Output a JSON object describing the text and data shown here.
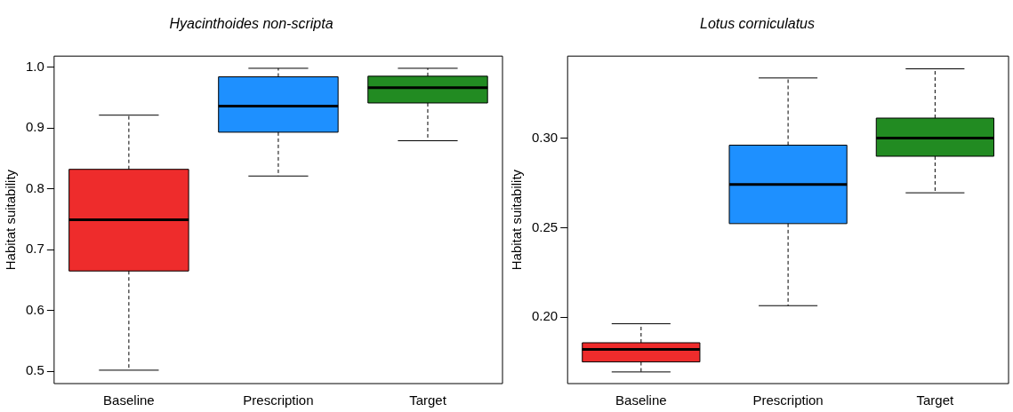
{
  "chart_data": [
    {
      "type": "box",
      "title": "Hyacinthoides non-scripta",
      "ylabel": "Habitat suitability",
      "categories": [
        "Baseline",
        "Prescription",
        "Target"
      ],
      "colors": [
        "#ee2c2c",
        "#1e90ff",
        "#228b22"
      ],
      "boxes": [
        {
          "low": 0.502,
          "q1": 0.665,
          "median": 0.749,
          "q3": 0.832,
          "high": 0.921
        },
        {
          "low": 0.821,
          "q1": 0.893,
          "median": 0.936,
          "q3": 0.984,
          "high": 0.998
        },
        {
          "low": 0.879,
          "q1": 0.941,
          "median": 0.966,
          "q3": 0.985,
          "high": 0.998
        }
      ],
      "ylim": [
        0.48,
        1.018
      ],
      "yticks": [
        0.5,
        0.6,
        0.7,
        0.8,
        0.9,
        {
          "value": 1,
          "label": "1.0"
        }
      ],
      "grid": false,
      "legend": false
    },
    {
      "type": "box",
      "title": "Lotus corniculatus",
      "ylabel": "Habitat suitability",
      "categories": [
        "Baseline",
        "Prescription",
        "Target"
      ],
      "colors": [
        "#ee2c2c",
        "#1e90ff",
        "#228b22"
      ],
      "boxes": [
        {
          "low": 0.1695,
          "q1": 0.1751,
          "median": 0.1821,
          "q3": 0.1858,
          "high": 0.1964
        },
        {
          "low": 0.2065,
          "q1": 0.2523,
          "median": 0.2742,
          "q3": 0.2961,
          "high": 0.3336
        },
        {
          "low": 0.2695,
          "q1": 0.2899,
          "median": 0.3,
          "q3": 0.3112,
          "high": 0.3387
        }
      ],
      "ylim": [
        0.163,
        0.3458
      ],
      "yticks": [
        {
          "value": 0.2,
          "label": "0.20"
        },
        {
          "value": 0.25,
          "label": "0.25"
        },
        {
          "value": 0.3,
          "label": "0.30"
        }
      ],
      "grid": false,
      "legend": false
    }
  ]
}
